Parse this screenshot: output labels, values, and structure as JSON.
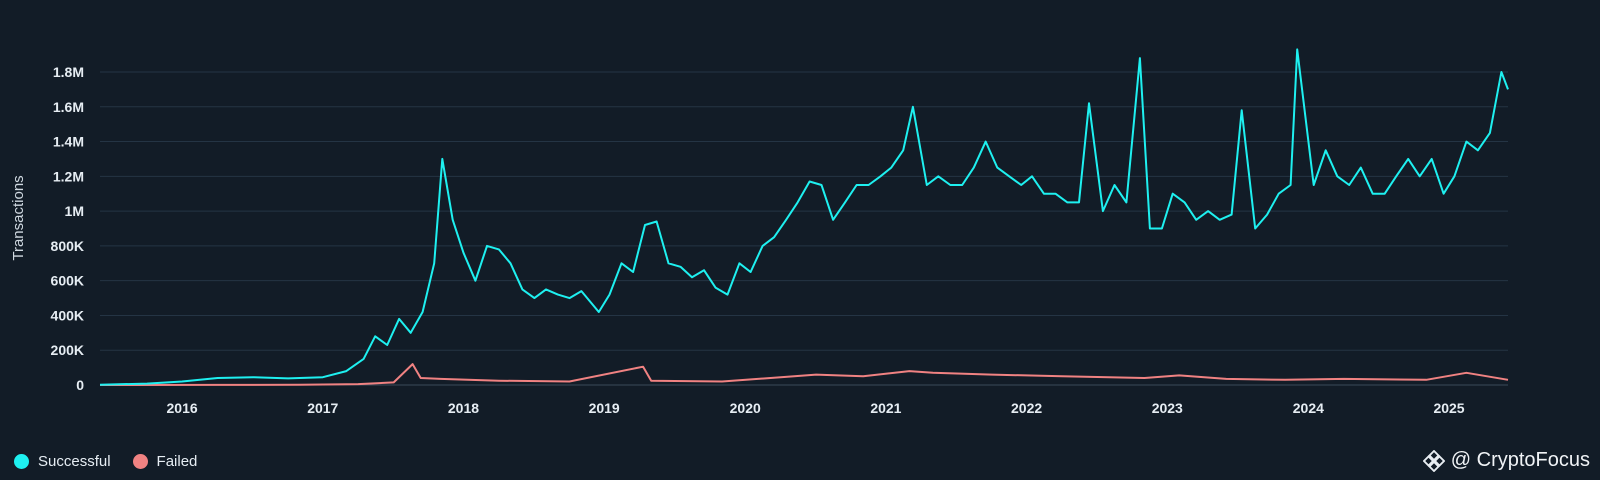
{
  "chart_data": {
    "type": "line",
    "title": "",
    "xlabel": "",
    "ylabel": "Transactions",
    "x_ticks": [
      "2016",
      "2017",
      "2018",
      "2019",
      "2020",
      "2021",
      "2022",
      "2023",
      "2024",
      "2025"
    ],
    "y_ticks": [
      "0",
      "200K",
      "400K",
      "600K",
      "800K",
      "1M",
      "1.2M",
      "1.4M",
      "1.6M",
      "1.8M"
    ],
    "xlim": [
      "2015-08-01",
      "2025-08-01"
    ],
    "ylim": [
      0,
      1800000
    ],
    "grid": true,
    "legend_position": "bottom-left",
    "series": [
      {
        "name": "Successful",
        "color": "#1ef0f0",
        "points": [
          [
            "2015-08-01",
            2000
          ],
          [
            "2015-12-01",
            8000
          ],
          [
            "2016-03-01",
            20000
          ],
          [
            "2016-06-01",
            40000
          ],
          [
            "2016-09-01",
            45000
          ],
          [
            "2016-12-01",
            38000
          ],
          [
            "2017-03-01",
            45000
          ],
          [
            "2017-05-01",
            80000
          ],
          [
            "2017-06-15",
            150000
          ],
          [
            "2017-07-15",
            280000
          ],
          [
            "2017-08-15",
            230000
          ],
          [
            "2017-09-15",
            380000
          ],
          [
            "2017-10-15",
            300000
          ],
          [
            "2017-11-15",
            420000
          ],
          [
            "2017-12-15",
            700000
          ],
          [
            "2018-01-05",
            1300000
          ],
          [
            "2018-02-01",
            950000
          ],
          [
            "2018-03-01",
            760000
          ],
          [
            "2018-04-01",
            600000
          ],
          [
            "2018-05-01",
            800000
          ],
          [
            "2018-06-01",
            780000
          ],
          [
            "2018-07-01",
            700000
          ],
          [
            "2018-08-01",
            550000
          ],
          [
            "2018-09-01",
            500000
          ],
          [
            "2018-10-01",
            550000
          ],
          [
            "2018-11-01",
            520000
          ],
          [
            "2018-12-01",
            500000
          ],
          [
            "2019-01-01",
            540000
          ],
          [
            "2019-02-15",
            420000
          ],
          [
            "2019-03-15",
            520000
          ],
          [
            "2019-04-15",
            700000
          ],
          [
            "2019-05-15",
            650000
          ],
          [
            "2019-06-15",
            920000
          ],
          [
            "2019-07-15",
            940000
          ],
          [
            "2019-08-15",
            700000
          ],
          [
            "2019-09-15",
            680000
          ],
          [
            "2019-10-15",
            620000
          ],
          [
            "2019-11-15",
            660000
          ],
          [
            "2019-12-15",
            560000
          ],
          [
            "2020-01-15",
            520000
          ],
          [
            "2020-02-15",
            700000
          ],
          [
            "2020-03-15",
            650000
          ],
          [
            "2020-04-15",
            800000
          ],
          [
            "2020-05-15",
            850000
          ],
          [
            "2020-06-15",
            950000
          ],
          [
            "2020-07-15",
            1050000
          ],
          [
            "2020-08-15",
            1170000
          ],
          [
            "2020-09-15",
            1150000
          ],
          [
            "2020-10-15",
            950000
          ],
          [
            "2020-11-15",
            1050000
          ],
          [
            "2020-12-15",
            1150000
          ],
          [
            "2021-01-15",
            1150000
          ],
          [
            "2021-02-15",
            1200000
          ],
          [
            "2021-03-15",
            1250000
          ],
          [
            "2021-04-15",
            1350000
          ],
          [
            "2021-05-10",
            1600000
          ],
          [
            "2021-06-15",
            1150000
          ],
          [
            "2021-07-15",
            1200000
          ],
          [
            "2021-08-15",
            1150000
          ],
          [
            "2021-09-15",
            1150000
          ],
          [
            "2021-10-15",
            1250000
          ],
          [
            "2021-11-15",
            1400000
          ],
          [
            "2021-12-15",
            1250000
          ],
          [
            "2022-01-15",
            1200000
          ],
          [
            "2022-02-15",
            1150000
          ],
          [
            "2022-03-15",
            1200000
          ],
          [
            "2022-04-15",
            1100000
          ],
          [
            "2022-05-15",
            1100000
          ],
          [
            "2022-06-15",
            1050000
          ],
          [
            "2022-07-15",
            1050000
          ],
          [
            "2022-08-10",
            1620000
          ],
          [
            "2022-09-15",
            1000000
          ],
          [
            "2022-10-15",
            1150000
          ],
          [
            "2022-11-15",
            1050000
          ],
          [
            "2022-12-20",
            1880000
          ],
          [
            "2023-01-15",
            900000
          ],
          [
            "2023-02-15",
            900000
          ],
          [
            "2023-03-15",
            1100000
          ],
          [
            "2023-04-15",
            1050000
          ],
          [
            "2023-05-15",
            950000
          ],
          [
            "2023-06-15",
            1000000
          ],
          [
            "2023-07-15",
            950000
          ],
          [
            "2023-08-15",
            980000
          ],
          [
            "2023-09-10",
            1580000
          ],
          [
            "2023-10-15",
            900000
          ],
          [
            "2023-11-15",
            980000
          ],
          [
            "2023-12-15",
            1100000
          ],
          [
            "2024-01-15",
            1150000
          ],
          [
            "2024-02-01",
            1930000
          ],
          [
            "2024-03-15",
            1150000
          ],
          [
            "2024-04-15",
            1350000
          ],
          [
            "2024-05-15",
            1200000
          ],
          [
            "2024-06-15",
            1150000
          ],
          [
            "2024-07-15",
            1250000
          ],
          [
            "2024-08-15",
            1100000
          ],
          [
            "2024-09-15",
            1100000
          ],
          [
            "2024-10-15",
            1200000
          ],
          [
            "2024-11-15",
            1300000
          ],
          [
            "2024-12-15",
            1200000
          ],
          [
            "2025-01-15",
            1300000
          ],
          [
            "2025-02-15",
            1100000
          ],
          [
            "2025-03-15",
            1200000
          ],
          [
            "2025-04-15",
            1400000
          ],
          [
            "2025-05-15",
            1350000
          ],
          [
            "2025-06-15",
            1450000
          ],
          [
            "2025-07-15",
            1800000
          ],
          [
            "2025-08-01",
            1700000
          ]
        ]
      },
      {
        "name": "Failed",
        "color": "#f08282",
        "points": [
          [
            "2015-08-01",
            0
          ],
          [
            "2016-06-01",
            500
          ],
          [
            "2017-01-01",
            1000
          ],
          [
            "2017-06-01",
            5000
          ],
          [
            "2017-09-01",
            15000
          ],
          [
            "2017-10-20",
            120000
          ],
          [
            "2017-11-10",
            40000
          ],
          [
            "2018-01-01",
            35000
          ],
          [
            "2018-06-01",
            25000
          ],
          [
            "2018-12-01",
            20000
          ],
          [
            "2019-06-10",
            105000
          ],
          [
            "2019-07-01",
            25000
          ],
          [
            "2020-01-01",
            20000
          ],
          [
            "2020-06-01",
            45000
          ],
          [
            "2020-09-01",
            60000
          ],
          [
            "2021-01-01",
            50000
          ],
          [
            "2021-05-01",
            80000
          ],
          [
            "2021-07-01",
            70000
          ],
          [
            "2021-12-01",
            60000
          ],
          [
            "2022-06-01",
            50000
          ],
          [
            "2023-01-01",
            40000
          ],
          [
            "2023-04-01",
            55000
          ],
          [
            "2023-08-01",
            35000
          ],
          [
            "2024-01-01",
            30000
          ],
          [
            "2024-06-01",
            35000
          ],
          [
            "2025-01-01",
            30000
          ],
          [
            "2025-04-15",
            70000
          ],
          [
            "2025-08-01",
            30000
          ]
        ]
      }
    ]
  },
  "legend": {
    "successful": "Successful",
    "failed": "Failed"
  },
  "watermark": {
    "text": "@ CryptoFocus"
  }
}
